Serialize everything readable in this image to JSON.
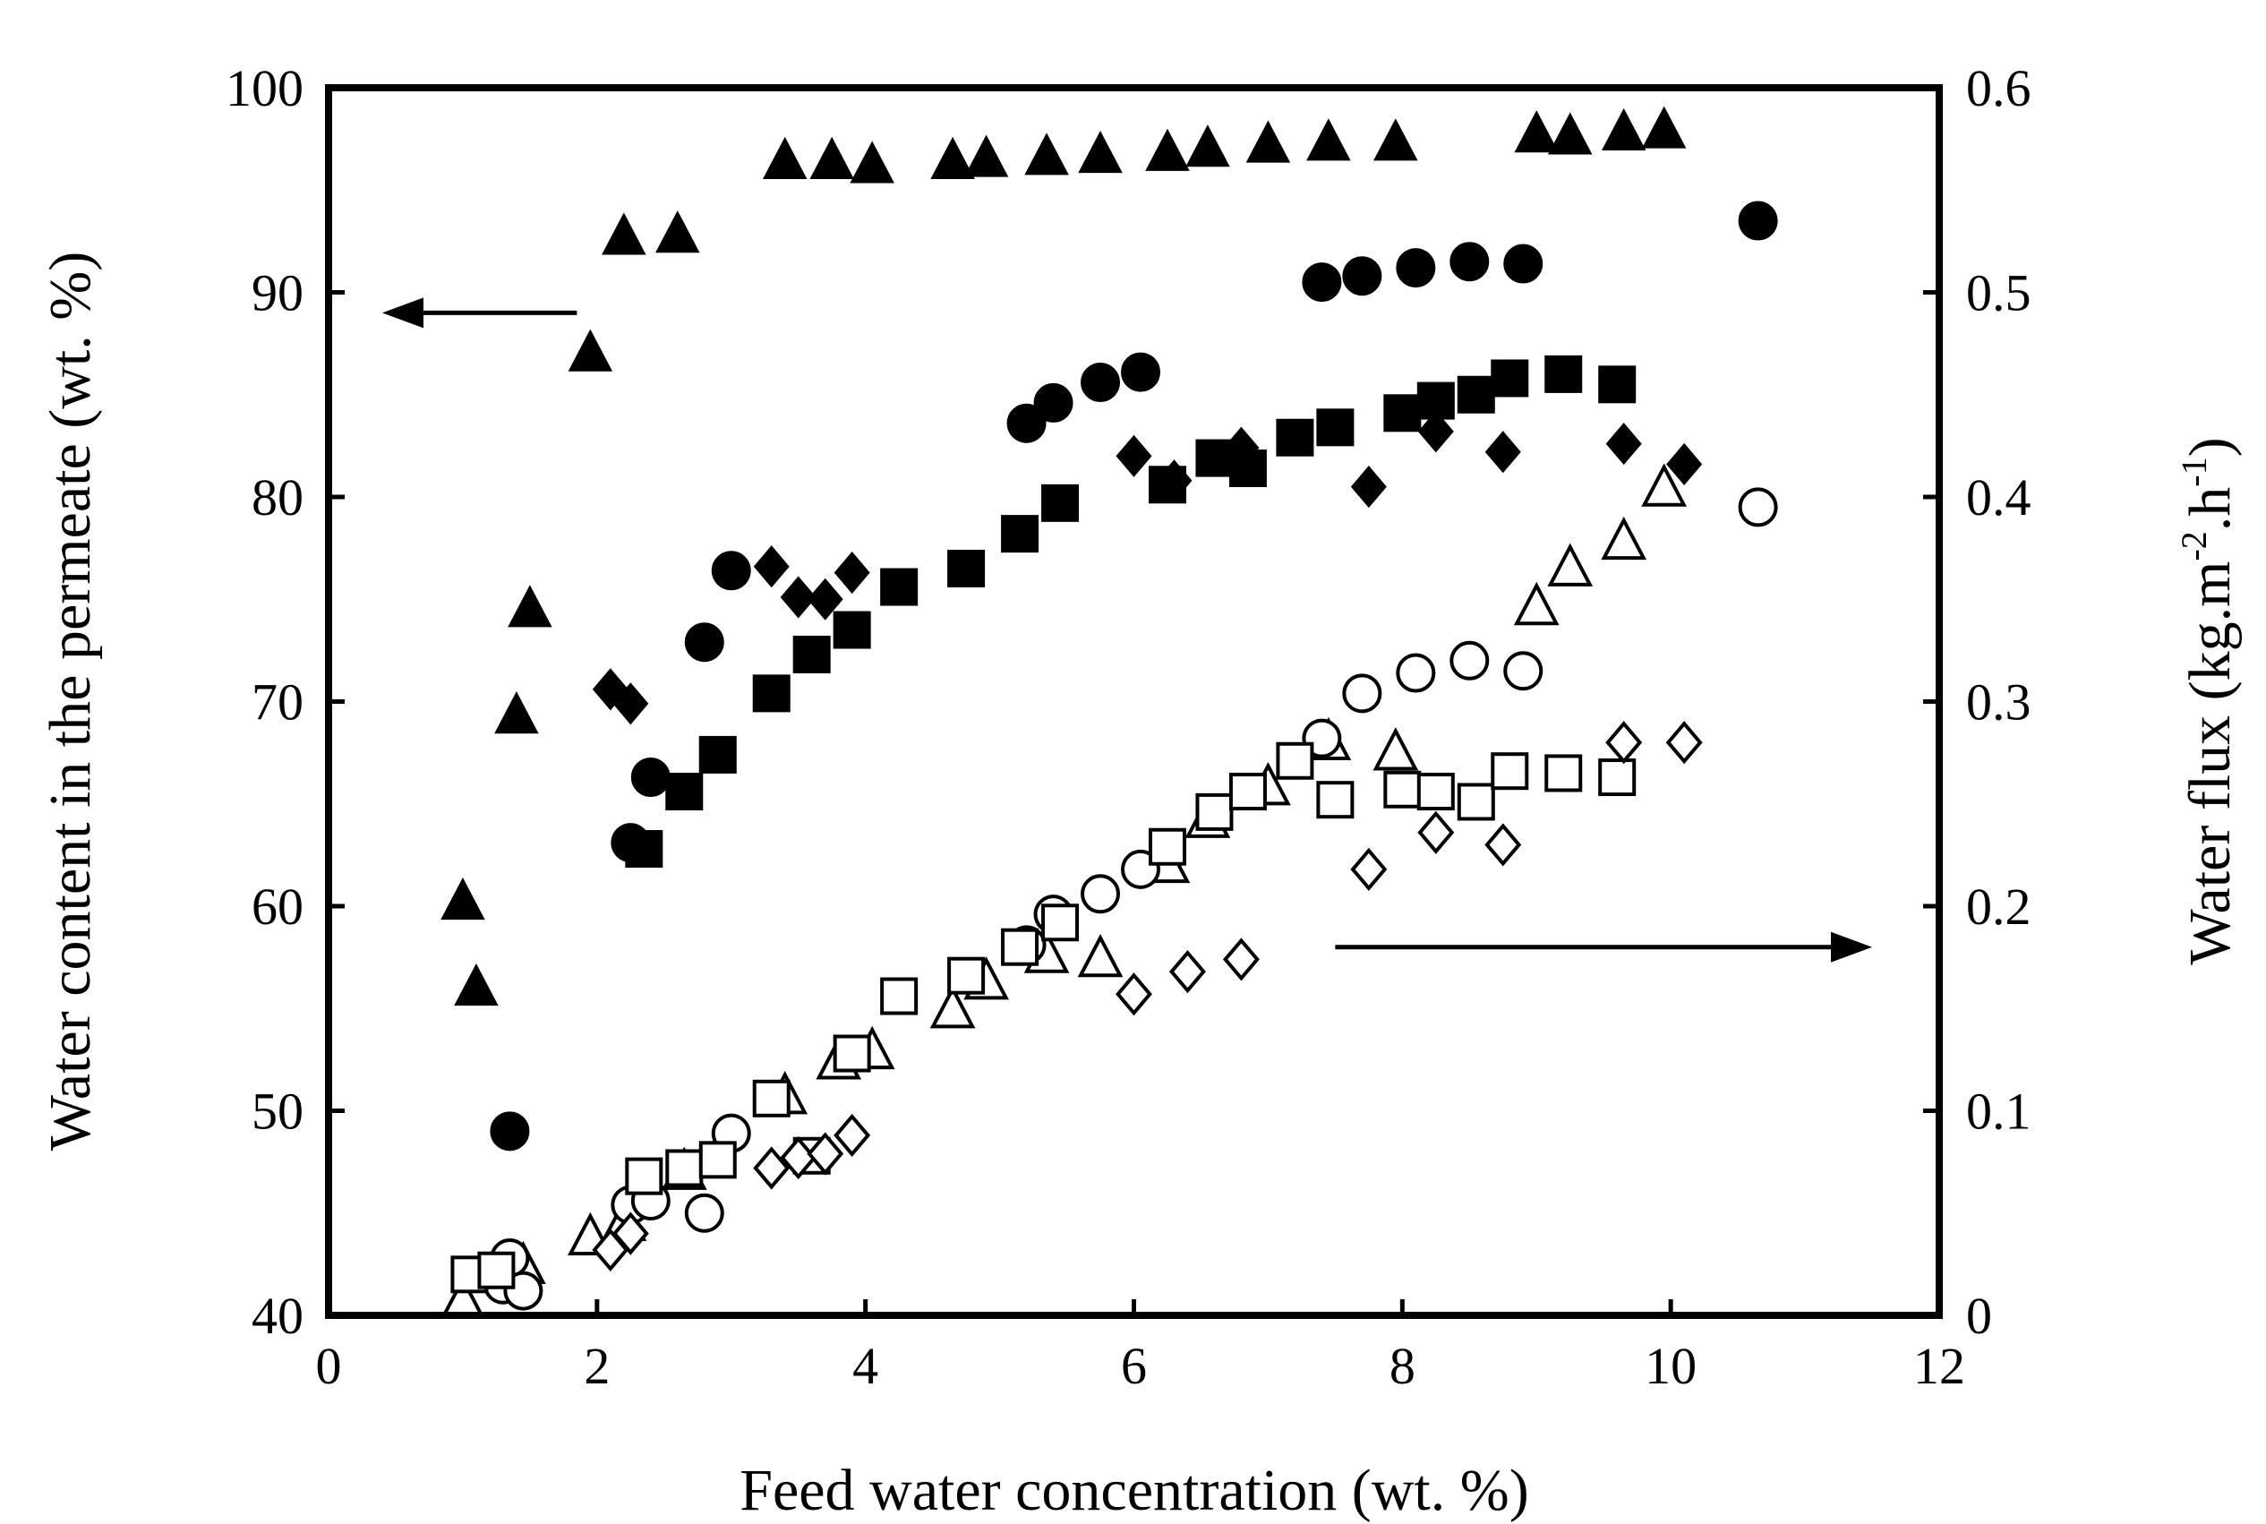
{
  "chart_data": {
    "type": "scatter",
    "xlabel": "Feed water concentration (wt. %)",
    "ylabel_left": "Water content in the permeate (wt. %)",
    "ylabel_right_parts": [
      "Water flux (kg.m",
      "-2",
      ".h",
      "-1",
      ")"
    ],
    "xlim": [
      0,
      12
    ],
    "ylim_left": [
      40,
      100
    ],
    "ylim_right": [
      0,
      0.6
    ],
    "x_ticks": [
      "0",
      "2",
      "4",
      "6",
      "8",
      "10",
      "12"
    ],
    "y_left_ticks": [
      "40",
      "50",
      "60",
      "70",
      "80",
      "90",
      "100"
    ],
    "y_right_ticks": [
      "0",
      "0.1",
      "0.2",
      "0.3",
      "0.4",
      "0.5",
      "0.6"
    ],
    "grid": false,
    "legend": "none",
    "series": [
      {
        "marker": "filled-triangle",
        "axis": "left",
        "points": [
          [
            1.0,
            60.2
          ],
          [
            1.1,
            56.0
          ],
          [
            1.4,
            69.3
          ],
          [
            1.5,
            74.5
          ],
          [
            1.95,
            87.0
          ],
          [
            2.2,
            92.7
          ],
          [
            2.6,
            92.8
          ],
          [
            3.4,
            96.4
          ],
          [
            3.75,
            96.4
          ],
          [
            4.05,
            96.2
          ],
          [
            4.65,
            96.4
          ],
          [
            4.9,
            96.5
          ],
          [
            5.35,
            96.6
          ],
          [
            5.75,
            96.7
          ],
          [
            6.25,
            96.8
          ],
          [
            6.55,
            97.0
          ],
          [
            7.0,
            97.2
          ],
          [
            7.45,
            97.3
          ],
          [
            7.95,
            97.3
          ],
          [
            9.0,
            97.7
          ],
          [
            9.25,
            97.6
          ],
          [
            9.65,
            97.8
          ],
          [
            9.95,
            97.9
          ]
        ]
      },
      {
        "marker": "filled-circle",
        "axis": "left",
        "points": [
          [
            1.35,
            49.0
          ],
          [
            2.25,
            63.1
          ],
          [
            2.4,
            66.3
          ],
          [
            2.8,
            72.9
          ],
          [
            3.0,
            76.4
          ],
          [
            5.2,
            83.6
          ],
          [
            5.4,
            84.6
          ],
          [
            5.75,
            85.6
          ],
          [
            6.05,
            86.1
          ],
          [
            7.4,
            90.5
          ],
          [
            7.7,
            90.8
          ],
          [
            8.1,
            91.2
          ],
          [
            8.5,
            91.5
          ],
          [
            8.9,
            91.4
          ],
          [
            10.65,
            93.5
          ]
        ]
      },
      {
        "marker": "filled-square",
        "axis": "left",
        "points": [
          [
            2.35,
            62.8
          ],
          [
            2.65,
            65.6
          ],
          [
            2.9,
            67.4
          ],
          [
            3.3,
            70.4
          ],
          [
            3.6,
            72.3
          ],
          [
            3.9,
            73.5
          ],
          [
            4.25,
            75.6
          ],
          [
            4.75,
            76.5
          ],
          [
            5.15,
            78.2
          ],
          [
            5.45,
            79.7
          ],
          [
            6.25,
            80.6
          ],
          [
            6.6,
            81.9
          ],
          [
            6.85,
            81.4
          ],
          [
            7.2,
            82.9
          ],
          [
            7.5,
            83.4
          ],
          [
            8.0,
            84.1
          ],
          [
            8.25,
            84.7
          ],
          [
            8.55,
            85.0
          ],
          [
            8.8,
            85.8
          ],
          [
            9.2,
            86.0
          ],
          [
            9.6,
            85.5
          ]
        ]
      },
      {
        "marker": "filled-diamond",
        "axis": "left",
        "points": [
          [
            2.1,
            70.6
          ],
          [
            2.25,
            69.9
          ],
          [
            3.3,
            76.6
          ],
          [
            3.5,
            75.1
          ],
          [
            3.7,
            75.0
          ],
          [
            3.9,
            76.3
          ],
          [
            6.0,
            82.0
          ],
          [
            6.3,
            80.8
          ],
          [
            6.8,
            82.4
          ],
          [
            7.75,
            80.5
          ],
          [
            8.25,
            83.2
          ],
          [
            8.75,
            82.2
          ],
          [
            9.65,
            82.6
          ],
          [
            10.1,
            81.6
          ]
        ]
      },
      {
        "marker": "open-triangle",
        "axis": "right",
        "points": [
          [
            1.0,
            0.007
          ],
          [
            1.3,
            0.022
          ],
          [
            1.45,
            0.024
          ],
          [
            1.95,
            0.038
          ],
          [
            2.2,
            0.045
          ],
          [
            2.65,
            0.07
          ],
          [
            3.4,
            0.107
          ],
          [
            3.8,
            0.124
          ],
          [
            4.05,
            0.129
          ],
          [
            4.65,
            0.149
          ],
          [
            4.9,
            0.163
          ],
          [
            5.35,
            0.176
          ],
          [
            5.75,
            0.174
          ],
          [
            6.25,
            0.22
          ],
          [
            6.55,
            0.242
          ],
          [
            7.0,
            0.258
          ],
          [
            7.45,
            0.28
          ],
          [
            7.95,
            0.275
          ],
          [
            9.0,
            0.346
          ],
          [
            9.25,
            0.365
          ],
          [
            9.65,
            0.378
          ],
          [
            9.95,
            0.404
          ]
        ]
      },
      {
        "marker": "open-circle",
        "axis": "left",
        "points": [
          [
            1.3,
            41.5
          ],
          [
            1.35,
            42.8
          ],
          [
            1.45,
            41.2
          ],
          [
            2.25,
            45.4
          ],
          [
            2.4,
            45.6
          ],
          [
            2.8,
            45.0
          ],
          [
            3.0,
            48.9
          ],
          [
            5.2,
            58.1
          ],
          [
            5.4,
            59.6
          ],
          [
            5.75,
            60.6
          ],
          [
            6.05,
            61.8
          ],
          [
            7.4,
            68.2
          ],
          [
            7.7,
            70.4
          ],
          [
            8.1,
            71.4
          ],
          [
            8.5,
            72.0
          ],
          [
            8.9,
            71.5
          ],
          [
            10.65,
            79.5
          ]
        ]
      },
      {
        "marker": "open-square",
        "axis": "left",
        "points": [
          [
            1.05,
            42.0
          ],
          [
            1.25,
            42.2
          ],
          [
            2.35,
            46.8
          ],
          [
            2.65,
            47.2
          ],
          [
            2.9,
            47.6
          ],
          [
            3.3,
            50.6
          ],
          [
            3.6,
            47.8
          ],
          [
            3.9,
            52.8
          ],
          [
            4.25,
            55.6
          ],
          [
            4.75,
            56.6
          ],
          [
            5.15,
            58.0
          ],
          [
            5.45,
            59.2
          ],
          [
            6.25,
            62.9
          ],
          [
            6.6,
            64.6
          ],
          [
            6.85,
            65.6
          ],
          [
            7.2,
            67.1
          ],
          [
            7.5,
            65.2
          ],
          [
            8.0,
            65.7
          ],
          [
            8.25,
            65.6
          ],
          [
            8.55,
            65.1
          ],
          [
            8.8,
            66.6
          ],
          [
            9.2,
            66.5
          ],
          [
            9.6,
            66.3
          ]
        ]
      },
      {
        "marker": "open-diamond",
        "axis": "left",
        "points": [
          [
            2.1,
            43.2
          ],
          [
            2.25,
            44.0
          ],
          [
            3.3,
            47.2
          ],
          [
            3.5,
            47.7
          ],
          [
            3.7,
            47.9
          ],
          [
            3.9,
            48.8
          ],
          [
            6.0,
            55.7
          ],
          [
            6.4,
            56.8
          ],
          [
            6.8,
            57.4
          ],
          [
            7.75,
            61.8
          ],
          [
            8.25,
            63.6
          ],
          [
            8.75,
            63.0
          ],
          [
            9.65,
            68.0
          ],
          [
            10.1,
            68.0
          ]
        ]
      }
    ],
    "annotations": [
      {
        "type": "arrow",
        "direction": "left",
        "from": [
          1.85,
          89.0
        ],
        "to": [
          0.4,
          89.0
        ]
      },
      {
        "type": "arrow",
        "direction": "right",
        "from": [
          7.5,
          58.0
        ],
        "to": [
          11.5,
          58.0
        ]
      }
    ]
  }
}
